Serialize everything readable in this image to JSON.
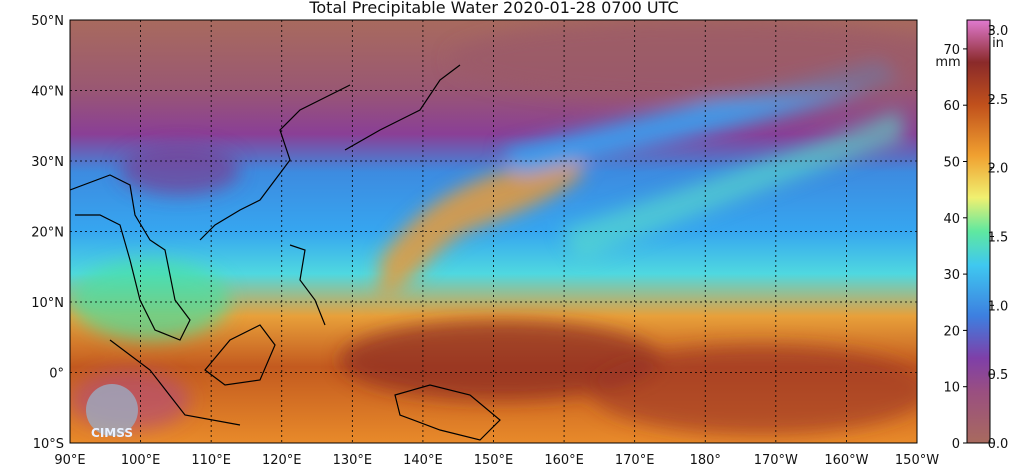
{
  "title": "Total Precipitable Water  2020-01-28 0700 UTC",
  "map": {
    "lat_labels": [
      "50°N",
      "40°N",
      "30°N",
      "20°N",
      "10°N",
      "0°",
      "10°S"
    ],
    "lon_labels": [
      "90°E",
      "100°E",
      "110°E",
      "120°E",
      "130°E",
      "140°E",
      "150°E",
      "160°E",
      "170°E",
      "180°",
      "170°W",
      "160°W",
      "150°W"
    ]
  },
  "colorbar": {
    "mm_unit": "mm",
    "mm_ticks": [
      0,
      10,
      20,
      30,
      40,
      50,
      60,
      70
    ],
    "in_unit": "in",
    "in_ticks": [
      "0.0",
      "0.5",
      "1.0",
      "1.5",
      "2.0",
      "2.5",
      "3.0"
    ]
  },
  "logo": "CIMSS"
}
